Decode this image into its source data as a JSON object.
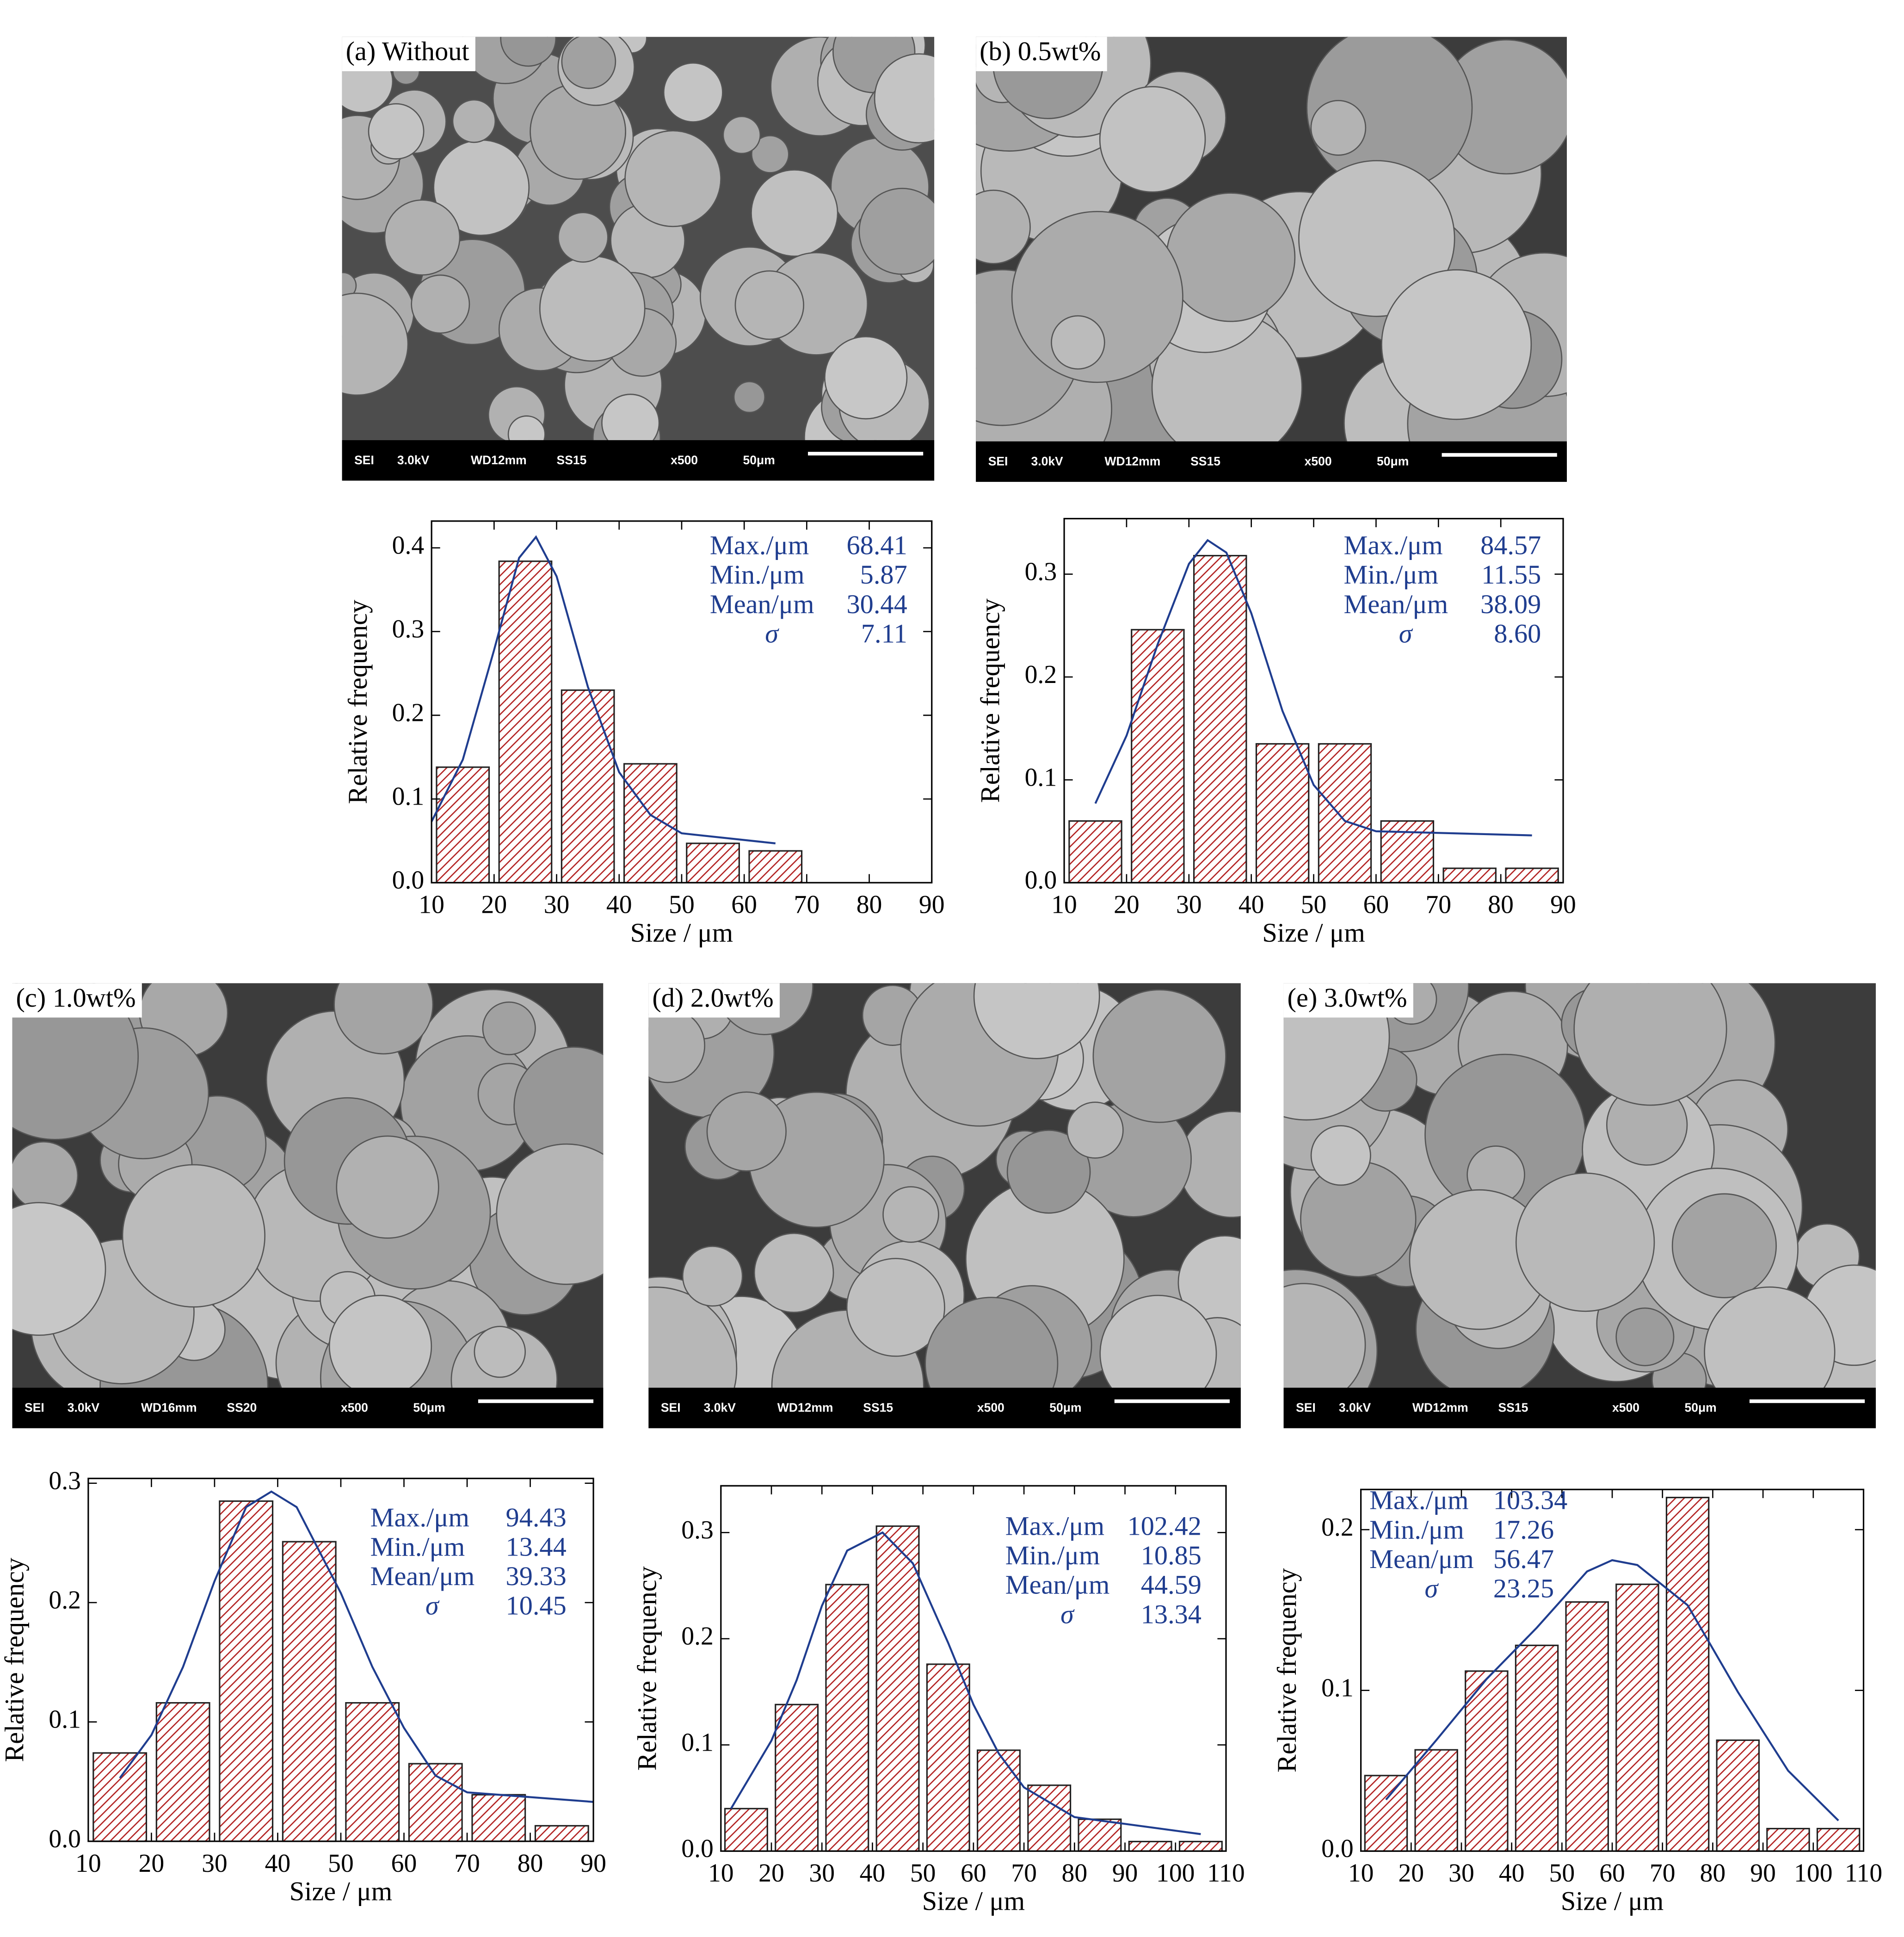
{
  "images": [
    {
      "label": "(a) Without",
      "info": [
        "SEI",
        "3.0kV",
        "WD12mm",
        "SS15",
        "x500",
        "50μm"
      ]
    },
    {
      "label": "(b) 0.5wt%",
      "info": [
        "SEI",
        "3.0kV",
        "WD12mm",
        "SS15",
        "x500",
        "50μm"
      ]
    },
    {
      "label": "(c) 1.0wt%",
      "info": [
        "SEI",
        "3.0kV",
        "WD16mm",
        "SS20",
        "x500",
        "50μm"
      ]
    },
    {
      "label": "(d) 2.0wt%",
      "info": [
        "SEI",
        "3.0kV",
        "WD12mm",
        "SS15",
        "x500",
        "50μm"
      ]
    },
    {
      "label": "(e) 3.0wt%",
      "info": [
        "SEI",
        "3.0kV",
        "WD12mm",
        "SS15",
        "x500",
        "50μm"
      ]
    }
  ],
  "chart_data": [
    {
      "type": "histogram",
      "x_label": "Size / μm",
      "y_label": "Relative frequency",
      "bins": [
        10,
        20,
        30,
        40,
        50,
        60,
        70
      ],
      "values": [
        0.138,
        0.384,
        0.23,
        0.142,
        0.047,
        0.038
      ],
      "color": "#b22222",
      "curve": {
        "x": [
          10,
          15,
          20,
          24,
          26.7,
          30,
          35,
          40,
          45,
          50,
          65
        ],
        "values": [
          0.073,
          0.147,
          0.278,
          0.388,
          0.413,
          0.366,
          0.234,
          0.132,
          0.081,
          0.059,
          0.047
        ],
        "color": "#1f3d8f"
      },
      "xlim": [
        10,
        90
      ],
      "xticks": [
        10,
        20,
        30,
        40,
        50,
        60,
        70,
        80,
        90
      ],
      "ylim": [
        0,
        0.432
      ],
      "yticks": [
        {
          "value": 0,
          "label": "0.0"
        },
        0.1,
        0.2,
        0.3,
        0.4
      ],
      "annotations": [
        {
          "label": "Max./μm",
          "text": "68.41"
        },
        {
          "label": "Min./μm",
          "text": "5.87"
        },
        {
          "label": "Mean/μm",
          "text": "30.44"
        },
        {
          "label": "σ",
          "text": "7.11"
        }
      ]
    },
    {
      "type": "histogram",
      "x_label": "Size / μm",
      "y_label": "Relative frequency",
      "bins": [
        10,
        20,
        30,
        40,
        50,
        60,
        70,
        80,
        90
      ],
      "values": [
        0.06,
        0.246,
        0.318,
        0.135,
        0.135,
        0.06,
        0.014,
        0.014
      ],
      "color": "#b22222",
      "curve": {
        "x": [
          15,
          20,
          25,
          30,
          33,
          36,
          40,
          45,
          50,
          55,
          60,
          85
        ],
        "values": [
          0.077,
          0.143,
          0.232,
          0.31,
          0.333,
          0.321,
          0.262,
          0.167,
          0.095,
          0.06,
          0.05,
          0.046
        ],
        "color": "#1f3d8f"
      },
      "xlim": [
        10,
        90
      ],
      "xticks": [
        10,
        20,
        30,
        40,
        50,
        60,
        70,
        80,
        90
      ],
      "ylim": [
        0,
        0.354
      ],
      "yticks": [
        {
          "value": 0,
          "label": "0.0"
        },
        0.1,
        0.2,
        0.3
      ],
      "annotations": [
        {
          "label": "Max./μm",
          "text": "84.57"
        },
        {
          "label": "Min./μm",
          "text": "11.55"
        },
        {
          "label": "Mean/μm",
          "text": "38.09"
        },
        {
          "label": "σ",
          "text": "8.60"
        }
      ]
    },
    {
      "type": "histogram",
      "x_label": "Size / μm",
      "y_label": "Relative frequency",
      "bins": [
        10,
        20,
        30,
        40,
        50,
        60,
        70,
        80,
        90
      ],
      "values": [
        0.074,
        0.116,
        0.285,
        0.251,
        0.116,
        0.065,
        0.039,
        0.013
      ],
      "color": "#b22222",
      "curve": {
        "x": [
          15,
          20,
          25,
          30,
          35,
          39,
          43,
          50,
          55,
          60,
          65,
          70,
          90
        ],
        "values": [
          0.053,
          0.089,
          0.146,
          0.218,
          0.28,
          0.293,
          0.28,
          0.208,
          0.146,
          0.095,
          0.055,
          0.041,
          0.033
        ],
        "color": "#1f3d8f"
      },
      "xlim": [
        10,
        90
      ],
      "xticks": [
        10,
        20,
        30,
        40,
        50,
        60,
        70,
        80,
        90
      ],
      "ylim": [
        0,
        0.304
      ],
      "yticks": [
        {
          "value": 0,
          "label": "0.0"
        },
        0.1,
        0.2,
        0.3
      ],
      "annotations": [
        {
          "label": "Max./μm",
          "text": "94.43"
        },
        {
          "label": "Min./μm",
          "text": "13.44"
        },
        {
          "label": "Mean/μm",
          "text": "39.33"
        },
        {
          "label": "σ",
          "text": "10.45"
        }
      ]
    },
    {
      "type": "histogram",
      "x_label": "Size / μm",
      "y_label": "Relative frequency",
      "bins": [
        10,
        20,
        30,
        40,
        50,
        60,
        70,
        80,
        90,
        100,
        110
      ],
      "values": [
        0.04,
        0.138,
        0.251,
        0.306,
        0.176,
        0.095,
        0.062,
        0.03,
        0.009,
        0.009
      ],
      "color": "#b22222",
      "curve": {
        "x": [
          12,
          20,
          25,
          30,
          35,
          42,
          48,
          55,
          60,
          65,
          70,
          80,
          105
        ],
        "values": [
          0.04,
          0.104,
          0.161,
          0.231,
          0.283,
          0.3,
          0.271,
          0.196,
          0.138,
          0.092,
          0.06,
          0.032,
          0.016
        ],
        "color": "#1f3d8f"
      },
      "xlim": [
        10,
        110
      ],
      "xticks": [
        10,
        20,
        30,
        40,
        50,
        60,
        70,
        80,
        90,
        100,
        110
      ],
      "ylim": [
        0,
        0.344
      ],
      "yticks": [
        {
          "value": 0,
          "label": "0.0"
        },
        0.1,
        0.2,
        0.3
      ],
      "annotations": [
        {
          "label": "Max./μm",
          "text": "102.42"
        },
        {
          "label": "Min./μm",
          "text": "10.85"
        },
        {
          "label": "Mean/μm",
          "text": "44.59"
        },
        {
          "label": "σ",
          "text": "13.34"
        }
      ]
    },
    {
      "type": "histogram",
      "x_label": "Size / μm",
      "y_label": "Relative frequency",
      "bins": [
        10,
        20,
        30,
        40,
        50,
        60,
        70,
        80,
        90,
        100,
        110
      ],
      "values": [
        0.047,
        0.063,
        0.112,
        0.128,
        0.155,
        0.166,
        0.22,
        0.069,
        0.014,
        0.014
      ],
      "color": "#b22222",
      "curve": {
        "x": [
          15,
          25,
          35,
          45,
          55,
          60,
          65,
          75,
          85,
          95,
          105
        ],
        "values": [
          0.032,
          0.069,
          0.107,
          0.139,
          0.174,
          0.181,
          0.178,
          0.153,
          0.099,
          0.05,
          0.019
        ],
        "color": "#1f3d8f"
      },
      "xlim": [
        10,
        110
      ],
      "xticks": [
        10,
        20,
        30,
        40,
        50,
        60,
        70,
        80,
        90,
        100,
        110
      ],
      "ylim": [
        0,
        0.225
      ],
      "yticks": [
        {
          "value": 0,
          "label": "0.0"
        },
        0.1,
        0.2
      ],
      "annotations": [
        {
          "label": "Max./μm",
          "text": "103.34"
        },
        {
          "label": "Min./μm",
          "text": "17.26"
        },
        {
          "label": "Mean/μm",
          "text": "56.47"
        },
        {
          "label": "σ",
          "text": "23.25"
        }
      ]
    }
  ]
}
